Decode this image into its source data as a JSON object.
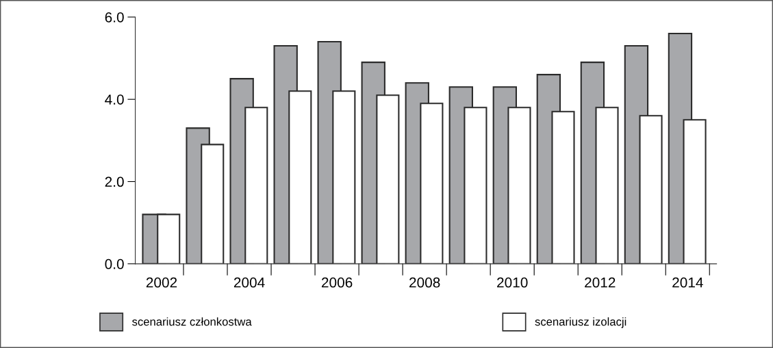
{
  "chart_data": {
    "type": "bar",
    "categories": [
      "2002",
      null,
      "2004",
      null,
      "2006",
      null,
      "2008",
      null,
      "2010",
      null,
      "2012",
      null,
      "2014"
    ],
    "series": [
      {
        "name": "scenariusz członkostwa",
        "color": "#a7a8ab",
        "values": [
          1.2,
          3.3,
          4.5,
          5.3,
          5.4,
          4.9,
          4.4,
          4.3,
          4.3,
          4.6,
          4.9,
          5.3,
          5.6
        ]
      },
      {
        "name": "scenariusz izolacji",
        "color": "#ffffff",
        "values": [
          1.2,
          2.9,
          3.8,
          4.2,
          4.2,
          4.1,
          3.9,
          3.8,
          3.8,
          3.7,
          3.8,
          3.6,
          3.5
        ]
      }
    ],
    "ylim": [
      0,
      6
    ],
    "yticks": [
      {
        "value": 0,
        "label": "0.0"
      },
      {
        "value": 2,
        "label": "2.0"
      },
      {
        "value": 4,
        "label": "4.0"
      },
      {
        "value": 6,
        "label": "6.0"
      }
    ],
    "grid": false,
    "legend": "bottom"
  }
}
